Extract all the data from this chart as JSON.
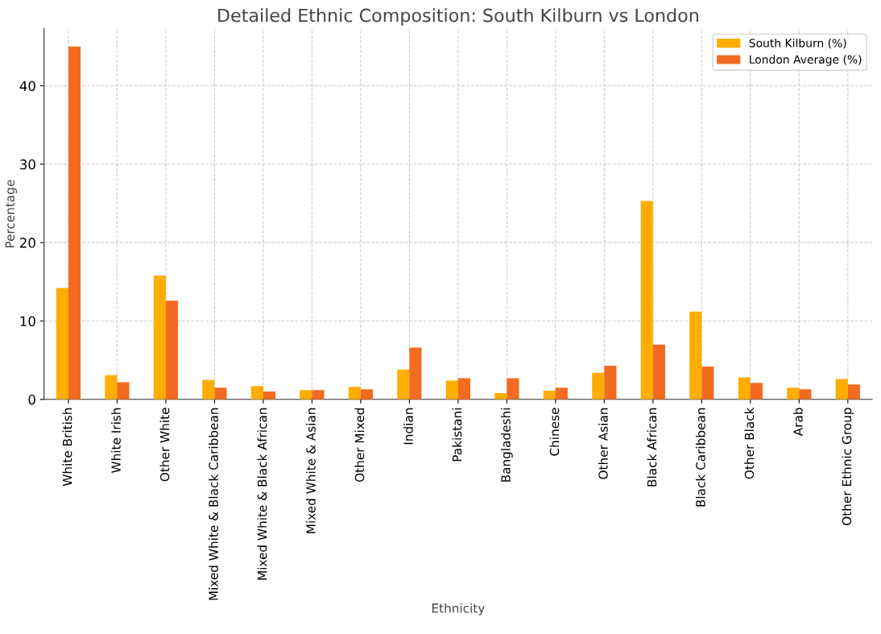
{
  "chart_data": {
    "type": "bar",
    "title": "Detailed Ethnic Composition: South Kilburn vs London",
    "xlabel": "Ethnicity",
    "ylabel": "Percentage",
    "categories": [
      "White British",
      "White Irish",
      "Other White",
      "Mixed White & Black Caribbean",
      "Mixed White & Black African",
      "Mixed White & Asian",
      "Other Mixed",
      "Indian",
      "Pakistani",
      "Bangladeshi",
      "Chinese",
      "Other Asian",
      "Black African",
      "Black Caribbean",
      "Other Black",
      "Arab",
      "Other Ethnic Group"
    ],
    "series": [
      {
        "name": "South Kilburn (%)",
        "color": "#ffad00",
        "values": [
          14.2,
          3.1,
          15.8,
          2.5,
          1.7,
          1.2,
          1.6,
          3.8,
          2.4,
          0.8,
          1.1,
          3.4,
          25.3,
          11.2,
          2.8,
          1.5,
          2.6
        ]
      },
      {
        "name": "London Average (%)",
        "color": "#f26b21",
        "values": [
          45,
          2.2,
          12.6,
          1.5,
          1.0,
          1.2,
          1.3,
          6.6,
          2.7,
          2.7,
          1.5,
          4.3,
          7.0,
          4.2,
          2.1,
          1.3,
          1.9
        ]
      }
    ],
    "ylim": [
      0,
      47.3
    ],
    "yticks": [
      0,
      10,
      20,
      30,
      40
    ],
    "grid": true,
    "legend": "top right"
  }
}
